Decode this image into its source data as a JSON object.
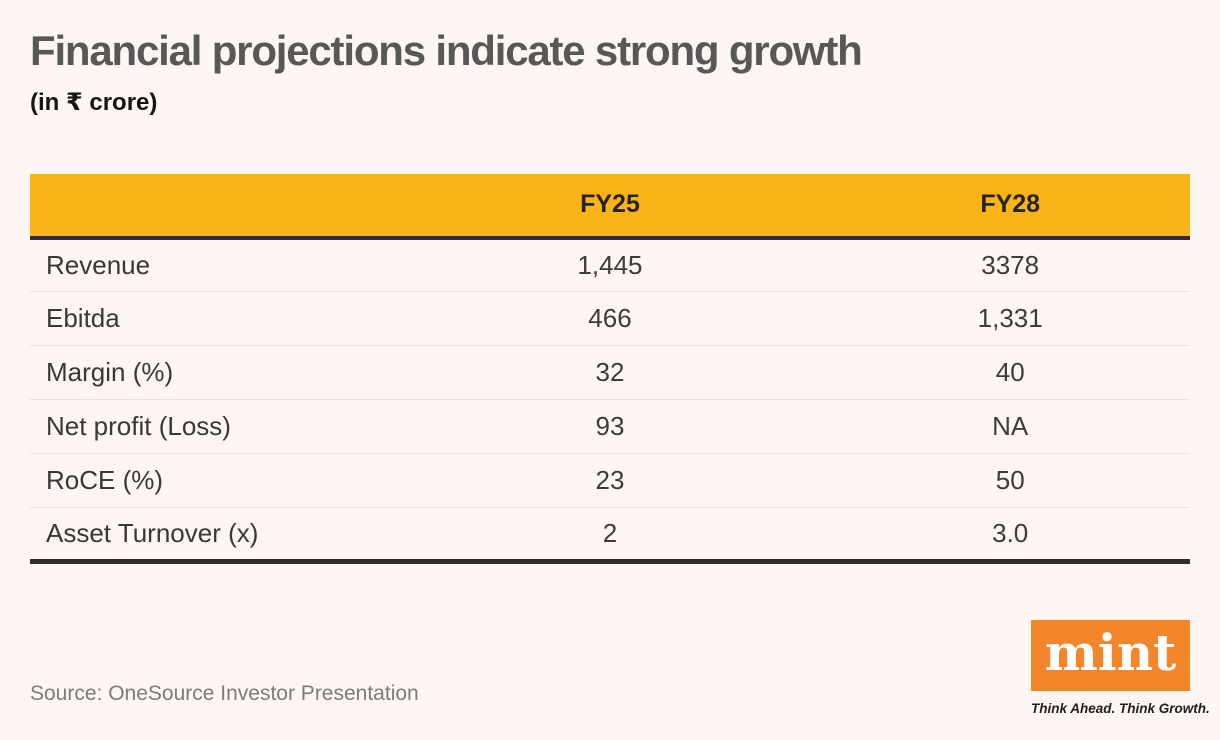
{
  "header": {
    "title": "Financial projections indicate strong growth",
    "subtitle": "(in ₹ crore)"
  },
  "table": {
    "columns": [
      "",
      "FY25",
      "FY28"
    ],
    "rows": [
      {
        "label": "Revenue",
        "fy25": "1,445",
        "fy28": "3378"
      },
      {
        "label": "Ebitda",
        "fy25": "466",
        "fy28": "1,331"
      },
      {
        "label": "Margin (%)",
        "fy25": "32",
        "fy28": "40"
      },
      {
        "label": "Net profit (Loss)",
        "fy25": "93",
        "fy28": "NA"
      },
      {
        "label": "RoCE (%)",
        "fy25": "23",
        "fy28": "50"
      },
      {
        "label": "Asset Turnover (x)",
        "fy25": "2",
        "fy28": "3.0"
      }
    ]
  },
  "footer": {
    "source": "Source: OneSource Investor Presentation",
    "logo": {
      "wordmark": "mint",
      "tagline": "Think Ahead. Think Growth."
    }
  },
  "colors": {
    "page_background": "#FDF6F3",
    "table_header_bg": "#FBB418",
    "logo_bg": "#F3862B",
    "rule_dark": "#2E2E2E"
  },
  "chart_data": {
    "type": "table",
    "title": "Financial projections indicate strong growth",
    "subtitle": "(in ₹ crore)",
    "columns": [
      "",
      "FY25",
      "FY28"
    ],
    "rows": [
      [
        "Revenue",
        "1,445",
        "3378"
      ],
      [
        "Ebitda",
        "466",
        "1,331"
      ],
      [
        "Margin (%)",
        "32",
        "40"
      ],
      [
        "Net profit (Loss)",
        "93",
        "NA"
      ],
      [
        "RoCE (%)",
        "23",
        "50"
      ],
      [
        "Asset Turnover (x)",
        "2",
        "3.0"
      ]
    ],
    "source": "Source: OneSource Investor Presentation"
  }
}
